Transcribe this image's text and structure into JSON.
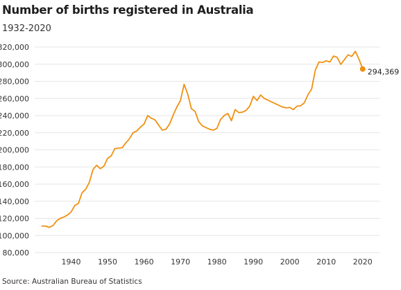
{
  "title": "Number of births registered in Australia",
  "subtitle": "1932-2020",
  "source": "Source: Australian Bureau of Statistics",
  "end_label": "294,369",
  "colors": {
    "line": "#f0900f",
    "grid": "#e6e6e6",
    "text": "#333333"
  },
  "chart_data": {
    "type": "line",
    "title": "Number of births registered in Australia",
    "subtitle": "1932-2020",
    "xlabel": "",
    "ylabel": "",
    "xlim": [
      1930,
      2021
    ],
    "ylim": [
      80000,
      320000
    ],
    "x_ticks": [
      1940,
      1950,
      1960,
      1970,
      1980,
      1990,
      2000,
      2010,
      2020
    ],
    "y_ticks": [
      80000,
      100000,
      120000,
      140000,
      160000,
      180000,
      200000,
      220000,
      240000,
      260000,
      280000,
      300000,
      320000
    ],
    "y_tick_labels": [
      "80,000",
      "100,000",
      "120,000",
      "140,000",
      "160,000",
      "180,000",
      "200,000",
      "220,000",
      "240,000",
      "260,000",
      "280,000",
      "300,000",
      "320,000"
    ],
    "grid": "horizontal",
    "legend": "none",
    "series": [
      {
        "x": [
          1932,
          1933,
          1934,
          1935,
          1936,
          1937,
          1938,
          1939,
          1940,
          1941,
          1942,
          1943,
          1944,
          1945,
          1946,
          1947,
          1948,
          1949,
          1950,
          1951,
          1952,
          1953,
          1954,
          1955,
          1956,
          1957,
          1958,
          1959,
          1960,
          1961,
          1962,
          1963,
          1964,
          1965,
          1966,
          1967,
          1968,
          1969,
          1970,
          1971,
          1972,
          1973,
          1974,
          1975,
          1976,
          1977,
          1978,
          1979,
          1980,
          1981,
          1982,
          1983,
          1984,
          1985,
          1986,
          1987,
          1988,
          1989,
          1990,
          1991,
          1992,
          1993,
          1994,
          1995,
          1996,
          1997,
          1998,
          1999,
          2000,
          2001,
          2002,
          2003,
          2004,
          2005,
          2006,
          2007,
          2008,
          2009,
          2010,
          2011,
          2012,
          2013,
          2014,
          2015,
          2016,
          2017,
          2018,
          2019,
          2020
        ],
        "values": [
          111000,
          111000,
          109500,
          111500,
          117000,
          120000,
          121500,
          124000,
          127500,
          135000,
          137500,
          150000,
          154000,
          162000,
          177000,
          182000,
          178000,
          181000,
          190000,
          193000,
          201500,
          202000,
          202500,
          208000,
          213000,
          220000,
          222000,
          226500,
          230000,
          240000,
          237000,
          235000,
          229000,
          223000,
          224000,
          230000,
          240500,
          250000,
          257500,
          276500,
          265000,
          248000,
          245000,
          233000,
          228000,
          226000,
          224000,
          223000,
          225000,
          235500,
          240000,
          242500,
          234000,
          247000,
          243500,
          244000,
          246000,
          251000,
          262500,
          257500,
          264000,
          260000,
          258000,
          256000,
          254000,
          252000,
          250000,
          249000,
          249500,
          247000,
          251000,
          251500,
          255000,
          264500,
          271000,
          293000,
          302500,
          302000,
          304000,
          302500,
          309500,
          308000,
          299700,
          305400,
          311000,
          309000,
          315000,
          305800,
          294369
        ]
      }
    ],
    "annotations": [
      {
        "x": 2020,
        "y": 294369,
        "label": "294,369"
      }
    ]
  }
}
